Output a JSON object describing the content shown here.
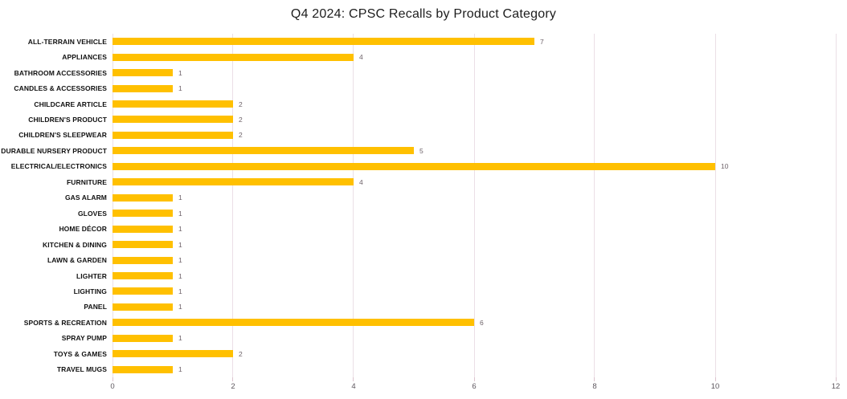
{
  "chart_data": {
    "type": "bar",
    "orientation": "horizontal",
    "title": "Q4 2024: CPSC Recalls by Product Category",
    "categories": [
      "ALL-TERRAIN VEHICLE",
      "APPLIANCES",
      "BATHROOM ACCESSORIES",
      "CANDLES & ACCESSORIES",
      "CHILDCARE ARTICLE",
      "CHILDREN'S PRODUCT",
      "CHILDREN'S SLEEPWEAR",
      "DURABLE NURSERY PRODUCT",
      "ELECTRICAL/ELECTRONICS",
      "FURNITURE",
      "GAS ALARM",
      "GLOVES",
      "HOME DÉCOR",
      "KITCHEN & DINING",
      "LAWN & GARDEN",
      "LIGHTER",
      "LIGHTING",
      "PANEL",
      "SPORTS & RECREATION",
      "SPRAY PUMP",
      "TOYS & GAMES",
      "TRAVEL MUGS"
    ],
    "values": [
      7,
      4,
      1,
      1,
      2,
      2,
      2,
      5,
      10,
      4,
      1,
      1,
      1,
      1,
      1,
      1,
      1,
      1,
      6,
      1,
      2,
      1
    ],
    "xlabel": "",
    "ylabel": "",
    "xlim": [
      0,
      12
    ],
    "x_ticks": [
      0,
      2,
      4,
      6,
      8,
      10,
      12
    ],
    "grid": "vertical",
    "data_labels": true,
    "legend": "none"
  },
  "colors": {
    "bar": "#FFC000",
    "gridline": "#ebdfe6",
    "tick_mark": "#dcc3ce",
    "value_label": "#6e6369",
    "axis_label": "#5d575e",
    "category_label": "#111111",
    "title": "#1d1d1d",
    "background": "#ffffff"
  }
}
